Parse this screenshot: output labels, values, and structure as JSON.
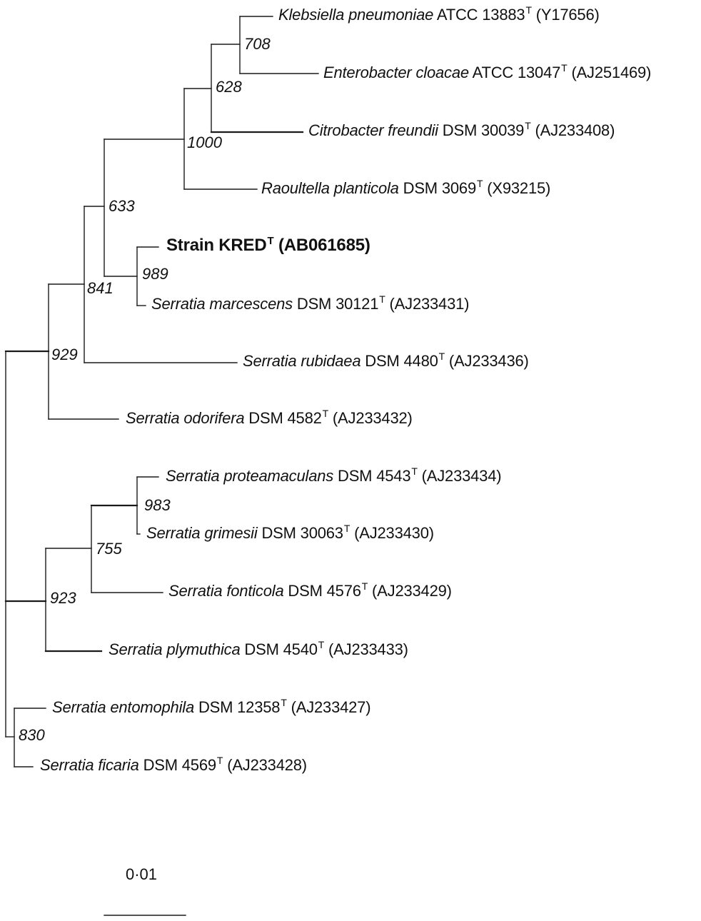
{
  "taxa": [
    {
      "species": "Klebsiella pneumoniae",
      "strain": "ATCC 13883",
      "type_mark": "T",
      "accession": "(Y17656)"
    },
    {
      "species": "Enterobacter cloacae",
      "strain": "ATCC 13047",
      "type_mark": "T",
      "accession": "(AJ251469)"
    },
    {
      "species": "Citrobacter freundii",
      "strain": "DSM 30039",
      "type_mark": "T",
      "accession": "(AJ233408)"
    },
    {
      "species": "Raoultella planticola",
      "strain": "DSM 3069",
      "type_mark": "T",
      "accession": "(X93215)"
    },
    {
      "species": "",
      "strain": "Strain KRED",
      "type_mark": "T",
      "accession": "(AB061685)"
    },
    {
      "species": "Serratia marcescens",
      "strain": "DSM 30121",
      "type_mark": "T",
      "accession": "(AJ233431)"
    },
    {
      "species": "Serratia rubidaea",
      "strain": "DSM 4480",
      "type_mark": "T",
      "accession": "(AJ233436)"
    },
    {
      "species": "Serratia odorifera",
      "strain": "DSM 4582",
      "type_mark": "T",
      "accession": "(AJ233432)"
    },
    {
      "species": "Serratia proteamaculans",
      "strain": "DSM 4543",
      "type_mark": "T",
      "accession": "(AJ233434)"
    },
    {
      "species": "Serratia grimesii",
      "strain": "DSM 30063",
      "type_mark": "T",
      "accession": "(AJ233430)"
    },
    {
      "species": "Serratia fonticola",
      "strain": "DSM 4576",
      "type_mark": "T",
      "accession": "(AJ233429)"
    },
    {
      "species": "Serratia plymuthica",
      "strain": "DSM 4540",
      "type_mark": "T",
      "accession": "(AJ233433)"
    },
    {
      "species": "Serratia entomophila",
      "strain": "DSM 12358",
      "type_mark": "T",
      "accession": "(AJ233427)"
    },
    {
      "species": "Serratia ficaria",
      "strain": "DSM 4569",
      "type_mark": "T",
      "accession": "(AJ233428)"
    }
  ],
  "bootstrap": [
    "708",
    "628",
    "1000",
    "633",
    "989",
    "841",
    "929",
    "983",
    "755",
    "923",
    "830"
  ],
  "scale_bar": {
    "label": "0·01"
  }
}
